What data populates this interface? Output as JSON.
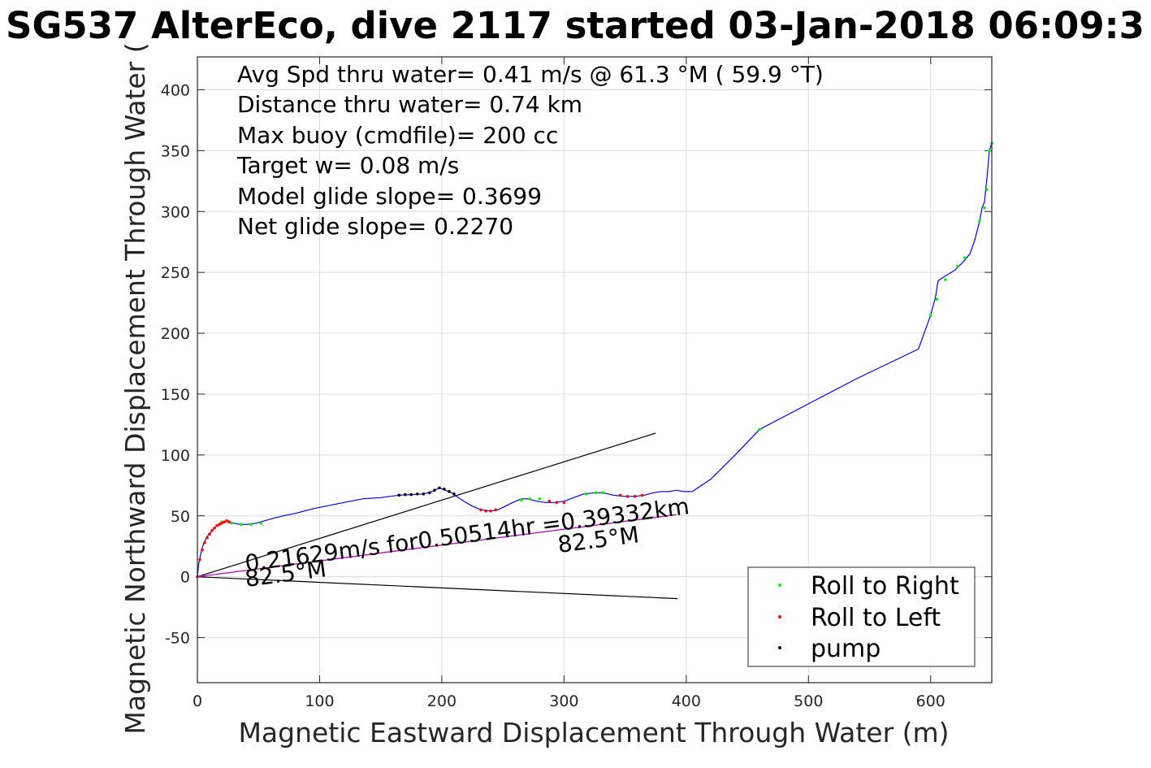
{
  "colors": {
    "track": "#0000ff",
    "roll_right": "#00ee00",
    "roll_left": "#ff0000",
    "pump": "#000000",
    "spd_line": "#c000c0",
    "box": "#000000"
  },
  "chart_data": {
    "type": "line",
    "title": "SG537 AlterEco, dive 2117 started 03-Jan-2018 06:09:3",
    "xlabel": "Magnetic Eastward Displacement Through Water (m)",
    "ylabel": "Magnetic Northward Displacement Through Water (",
    "xlim": [
      0,
      650
    ],
    "ylim": [
      -87,
      427
    ],
    "grid": true,
    "xticks": [
      0,
      100,
      200,
      300,
      400,
      500,
      600
    ],
    "yticks": [
      -50,
      0,
      50,
      100,
      150,
      200,
      250,
      300,
      350,
      400
    ],
    "legend_position": "bottom-right",
    "annotations": [
      "Avg Spd thru water=  0.41 m/s @  61.3 °M ( 59.9 °T)",
      "Distance thru water=  0.74 km",
      "Max buoy (cmdfile)= 200 cc",
      "Target w= 0.08 m/s",
      "Model glide slope= 0.3699",
      "Net glide slope= 0.2270"
    ],
    "speed_label": "0.21629m/s for0.50514hr =0.39332km",
    "heading_label_start": "82.5°M",
    "heading_label_end": "82.5°M",
    "series": [
      {
        "name": "track",
        "x": [
          0,
          1,
          3,
          5,
          8,
          12,
          16,
          20,
          25,
          30,
          35,
          40,
          48,
          55,
          62,
          70,
          80,
          95,
          110,
          125,
          135,
          150,
          165,
          175,
          185,
          192,
          198,
          203,
          208,
          212,
          218,
          225,
          232,
          240,
          246,
          252,
          258,
          265,
          270,
          278,
          285,
          292,
          300,
          308,
          316,
          325,
          332,
          340,
          350,
          358,
          366,
          373,
          380,
          386,
          392,
          398,
          405,
          420,
          440,
          460,
          500,
          540,
          590,
          600,
          604,
          606,
          612,
          620,
          626,
          632,
          636,
          640,
          642,
          644,
          645,
          646,
          648,
          650
        ],
        "y": [
          0,
          10,
          20,
          27,
          33,
          38,
          42,
          45,
          46,
          44,
          43,
          43,
          44,
          46,
          48,
          50,
          52,
          56,
          59,
          62,
          64,
          65,
          67,
          67.5,
          68,
          70,
          73,
          71,
          69,
          66,
          62,
          58,
          55,
          54,
          55,
          58,
          61,
          64,
          64,
          62,
          61,
          61,
          62,
          65,
          68,
          69,
          69,
          67,
          66,
          66,
          67,
          69,
          70,
          70,
          71,
          70,
          70,
          80,
          100,
          121,
          142,
          163,
          187,
          215,
          230,
          243,
          247,
          252,
          258,
          265,
          276,
          292,
          303,
          308,
          318,
          327,
          350,
          356
        ]
      },
      {
        "name": "Roll to Right",
        "x": [
          20,
          28,
          36,
          44,
          52,
          265,
          272,
          280,
          318,
          326,
          332,
          460,
          600,
          605,
          612,
          622,
          628,
          640,
          644,
          646,
          648,
          650
        ],
        "y": [
          45,
          44,
          43,
          43,
          44,
          63,
          64,
          64,
          68,
          69,
          69,
          121,
          215,
          228,
          244,
          255,
          262,
          292,
          303,
          318,
          350,
          356
        ]
      },
      {
        "name": "Roll to Left",
        "x": [
          0,
          2,
          4,
          6,
          8,
          10,
          12,
          14,
          16,
          18,
          20,
          22,
          24,
          26,
          232,
          236,
          240,
          244,
          288,
          294,
          300,
          346,
          352,
          358,
          364
        ],
        "y": [
          0,
          14,
          22,
          28,
          32,
          35,
          38,
          40,
          42,
          43,
          44,
          45,
          46,
          45,
          55,
          54,
          54,
          55,
          62,
          61,
          61,
          67,
          66,
          66,
          67
        ]
      },
      {
        "name": "pump",
        "x": [
          165,
          170,
          175,
          180,
          185,
          190,
          194,
          198,
          202,
          206,
          210
        ],
        "y": [
          67,
          67.5,
          67.5,
          68,
          68,
          69,
          71,
          73,
          72,
          70,
          68
        ]
      }
    ],
    "heading_lines": [
      {
        "x": [
          0,
          375
        ],
        "y": [
          0,
          118
        ]
      },
      {
        "x": [
          0,
          393
        ],
        "y": [
          0,
          -18
        ]
      },
      {
        "x": [
          0,
          392
        ],
        "y": [
          0,
          51
        ]
      }
    ],
    "legend": [
      "Roll to Right",
      "Roll to Left",
      "pump"
    ]
  }
}
